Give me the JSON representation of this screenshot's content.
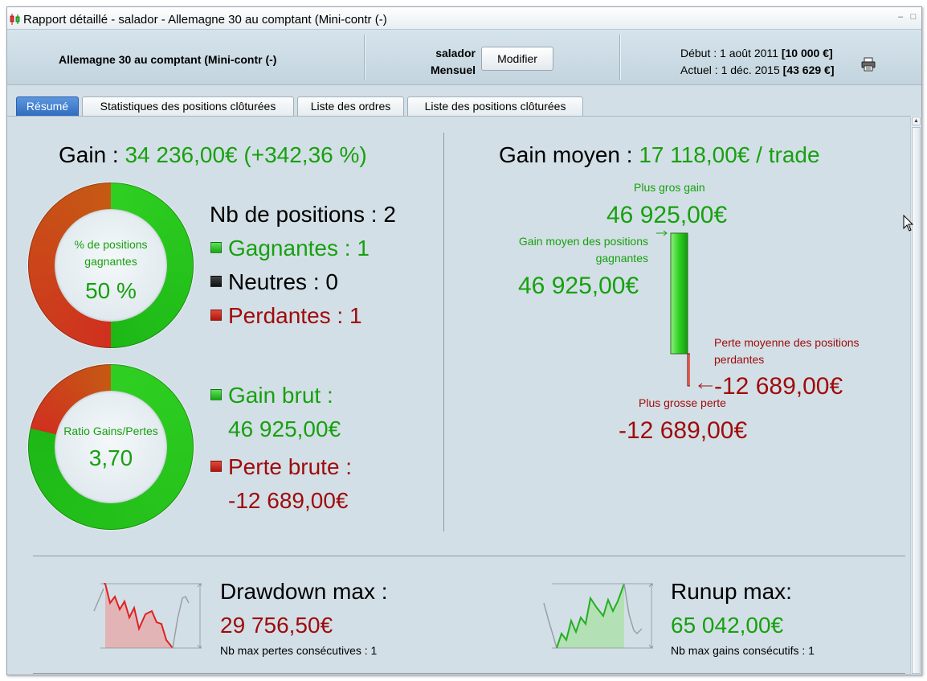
{
  "window": {
    "title": "Rapport détaillé - salador - Allemagne 30 au comptant (Mini-contr (-)",
    "minimize_glyph": "–",
    "maximize_glyph": "□"
  },
  "header": {
    "instrument": "Allemagne 30 au comptant (Mini-contr (-)",
    "user": "salador",
    "period": "Mensuel",
    "modify_label": "Modifier",
    "start_label": "Début : 1 août 2011",
    "start_value": "[10 000 €]",
    "current_label": "Actuel : 1 déc. 2015",
    "current_value": "[43 629 €]"
  },
  "tabs": [
    {
      "label": "Résumé",
      "active": true
    },
    {
      "label": "Statistiques des positions clôturées",
      "active": false
    },
    {
      "label": "Liste des ordres",
      "active": false
    },
    {
      "label": "Liste des positions clôturées",
      "active": false
    }
  ],
  "summary": {
    "gain_label": "Gain :",
    "gain_value": "34 236,00€",
    "gain_pct": "(+342,36 %)",
    "win_donut": {
      "label_line1": "% de positions",
      "label_line2": "gagnantes",
      "value": "50 %",
      "win_fraction": 0.5
    },
    "positions_label": "Nb de positions : 2",
    "winners_label": "Gagnantes : 1",
    "neutral_label": "Neutres : 0",
    "losers_label": "Perdantes : 1",
    "ratio_donut": {
      "label": "Ratio Gains/Pertes",
      "value": "3,70",
      "win_fraction": 0.787
    },
    "gross_gain_label": "Gain brut :",
    "gross_gain_value": "46 925,00€",
    "gross_loss_label": "Perte brute :",
    "gross_loss_value": "-12 689,00€"
  },
  "average": {
    "title_label": "Gain moyen :",
    "title_value": "17 118,00€ / trade",
    "max_gain_label": "Plus gros gain",
    "max_gain_value": "46 925,00€",
    "avg_win_label_line1": "Gain moyen des positions",
    "avg_win_label_line2": "gagnantes",
    "avg_win_value": "46 925,00€",
    "avg_loss_label_line1": "Perte moyenne des positions",
    "avg_loss_label_line2": "perdantes",
    "avg_loss_value": "-12 689,00€",
    "max_loss_label": "Plus grosse perte",
    "max_loss_value": "-12 689,00€"
  },
  "drawdown": {
    "title": "Drawdown max :",
    "value": "29 756,50€",
    "sub": "Nb max pertes consécutives : 1"
  },
  "runup": {
    "title": "Runup max:",
    "value": "65 042,00€",
    "sub": "Nb max gains consécutifs : 1"
  },
  "colors": {
    "gain": "#17a010",
    "loss": "#9e0b0b",
    "tab_active": "#2f6cc0"
  },
  "icons": {
    "app": "candlestick-icon",
    "print": "printer-icon"
  }
}
